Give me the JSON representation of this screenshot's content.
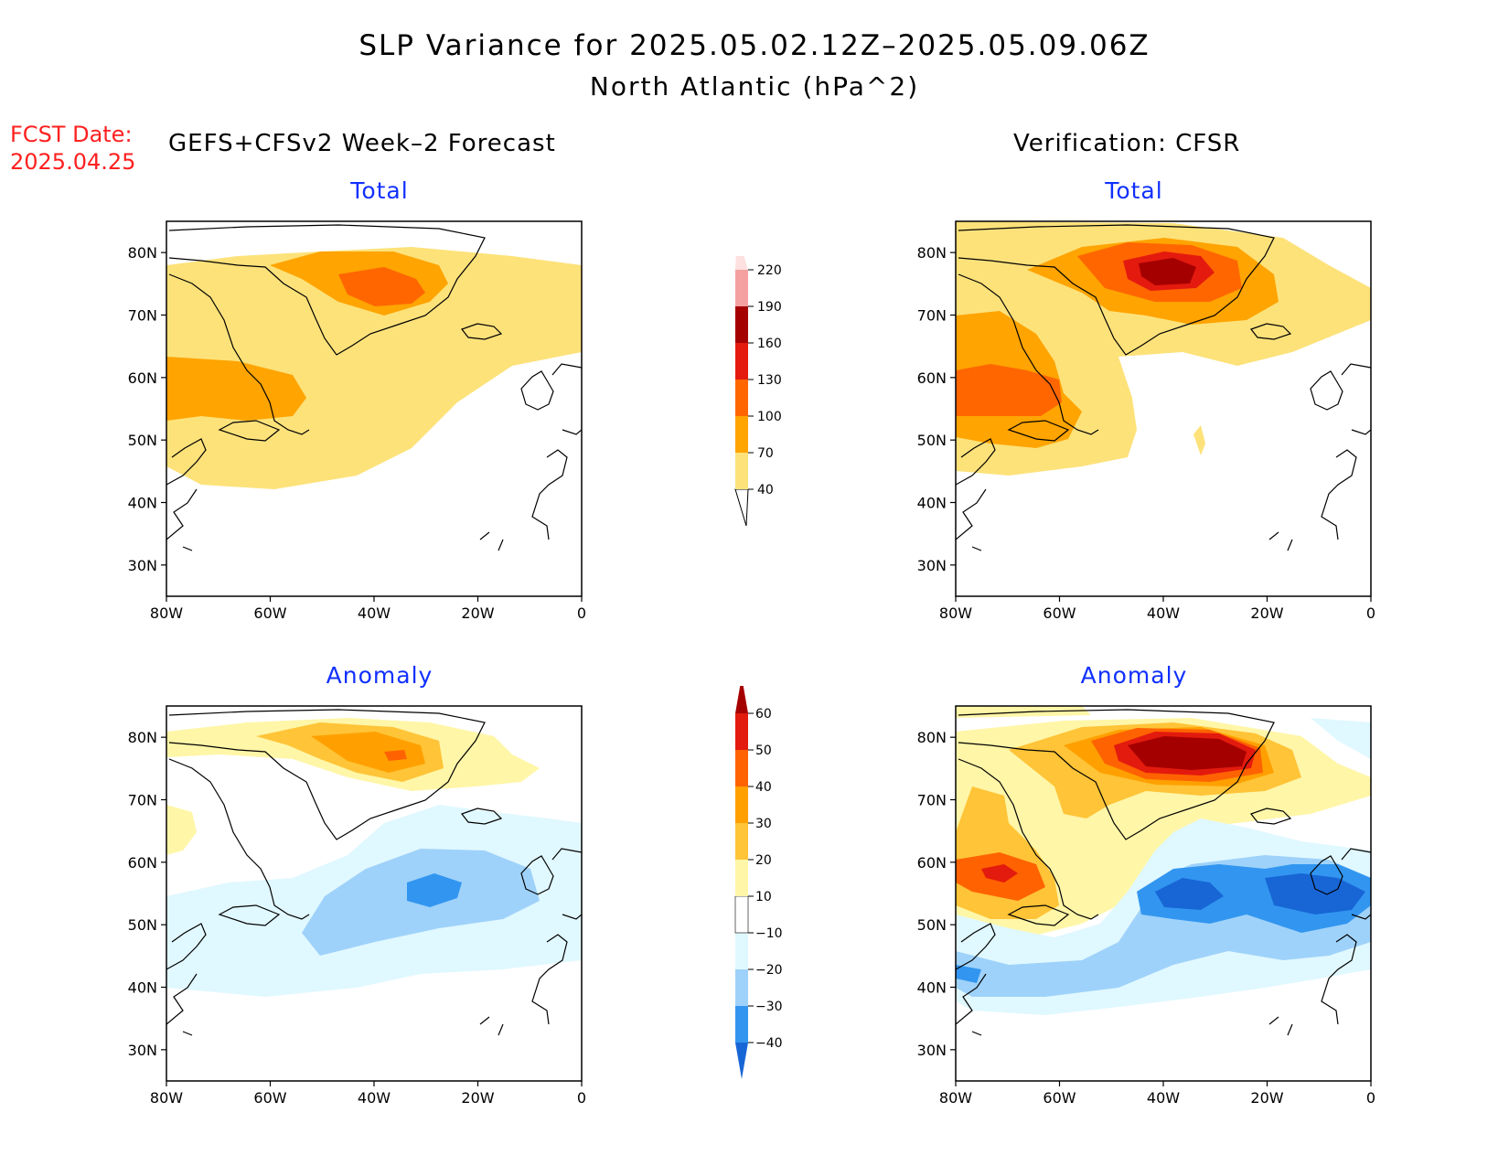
{
  "title": {
    "line1": "SLP Variance for 2025.05.02.12Z–2025.05.09.06Z",
    "line2": "North Atlantic (hPa^2)"
  },
  "fcst": {
    "label": "FCST Date:",
    "date": "2025.04.25"
  },
  "columns": {
    "left": "GEFS+CFSv2 Week–2 Forecast",
    "right": "Verification: CFSR"
  },
  "panels": [
    {
      "id": "fcst-total",
      "title": "Total"
    },
    {
      "id": "verif-total",
      "title": "Total"
    },
    {
      "id": "fcst-anom",
      "title": "Anomaly"
    },
    {
      "id": "verif-anom",
      "title": "Anomaly"
    }
  ],
  "axes": {
    "lat_ticks": [
      "80N",
      "70N",
      "60N",
      "50N",
      "40N",
      "30N"
    ],
    "lon_ticks": [
      "80W",
      "60W",
      "40W",
      "20W",
      "0"
    ],
    "lat_range": [
      25,
      85
    ],
    "lon_range": [
      -80,
      0
    ]
  },
  "colorbars": {
    "total": {
      "labels": [
        "40",
        "70",
        "100",
        "130",
        "160",
        "190",
        "220"
      ],
      "colors": [
        "#fde27a",
        "#ffa400",
        "#ff6600",
        "#e41a0f",
        "#a50000",
        "#f4a0a0",
        "#fde0e0"
      ]
    },
    "anomaly": {
      "labels": [
        "-40",
        "-30",
        "-20",
        "-10",
        "10",
        "20",
        "30",
        "40",
        "50",
        "60"
      ],
      "colors": [
        "#1866d6",
        "#3296f0",
        "#9fd2fa",
        "#e0f8ff",
        "#ffffff",
        "#fff6a8",
        "#ffc437",
        "#ffa000",
        "#ff6200",
        "#e31a0e",
        "#a50000"
      ]
    }
  }
}
